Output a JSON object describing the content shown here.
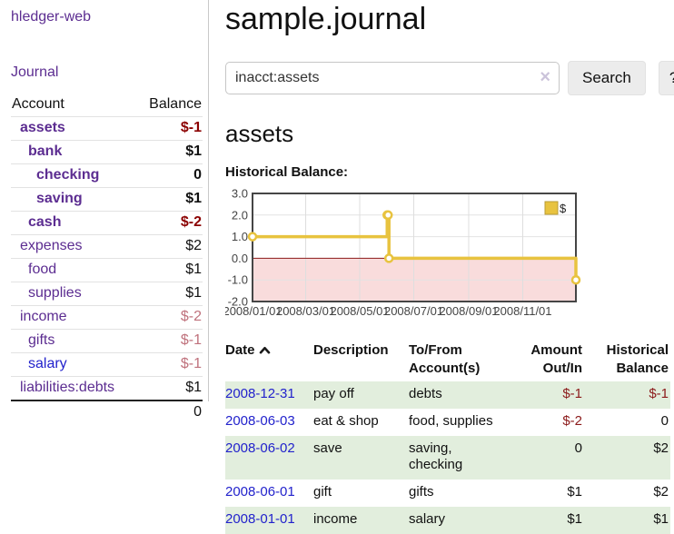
{
  "sidebar": {
    "app_title": "hledger-web",
    "nav": {
      "journal_label": "Journal"
    },
    "accounts_table": {
      "headers": {
        "account": "Account",
        "balance": "Balance"
      },
      "rows": [
        {
          "name": "assets",
          "level": 1,
          "bold": true,
          "blue": false,
          "balance": "$-1",
          "neg": "neg-strong"
        },
        {
          "name": "bank",
          "level": 2,
          "bold": true,
          "blue": false,
          "balance": "$1",
          "neg": ""
        },
        {
          "name": "checking",
          "level": 3,
          "bold": true,
          "blue": false,
          "balance": "0",
          "neg": ""
        },
        {
          "name": "saving",
          "level": 3,
          "bold": true,
          "blue": false,
          "balance": "$1",
          "neg": ""
        },
        {
          "name": "cash",
          "level": 2,
          "bold": true,
          "blue": false,
          "balance": "$-2",
          "neg": "neg-strong"
        },
        {
          "name": "expenses",
          "level": 1,
          "bold": false,
          "blue": false,
          "balance": "$2",
          "neg": ""
        },
        {
          "name": "food",
          "level": 2,
          "bold": false,
          "blue": false,
          "balance": "$1",
          "neg": ""
        },
        {
          "name": "supplies",
          "level": 2,
          "bold": false,
          "blue": false,
          "balance": "$1",
          "neg": ""
        },
        {
          "name": "income",
          "level": 1,
          "bold": false,
          "blue": false,
          "balance": "$-2",
          "neg": "neg-soft"
        },
        {
          "name": "gifts",
          "level": 2,
          "bold": false,
          "blue": false,
          "balance": "$-1",
          "neg": "neg-soft"
        },
        {
          "name": "salary",
          "level": 2,
          "bold": false,
          "blue": true,
          "balance": "$-1",
          "neg": "neg-soft"
        },
        {
          "name": "liabilities:debts",
          "level": 1,
          "bold": false,
          "blue": false,
          "balance": "$1",
          "neg": ""
        }
      ],
      "total": "0"
    }
  },
  "main": {
    "title": "sample.journal",
    "search": {
      "value": "inacct:assets",
      "clear_icon": "×",
      "button_label": "Search",
      "help_label": "?"
    },
    "account_heading": "assets",
    "chart_label": "Historical Balance:"
  },
  "chart_data": {
    "type": "line",
    "title": "Historical Balance",
    "step": true,
    "series": [
      {
        "name": "$",
        "color": "#e8c33f",
        "points": [
          [
            "2008-01-01",
            1
          ],
          [
            "2008-06-01",
            2
          ],
          [
            "2008-06-02",
            2
          ],
          [
            "2008-06-03",
            0
          ],
          [
            "2008-12-31",
            -1
          ]
        ]
      }
    ],
    "x_range": [
      "2008-01-01",
      "2008-12-31"
    ],
    "x_ticks": [
      "2008/01/01",
      "2008/03/01",
      "2008/05/01",
      "2008/07/01",
      "2008/09/01",
      "2008/11/01"
    ],
    "y_ticks": [
      3,
      2,
      1,
      0,
      -1,
      -2
    ],
    "ylim": [
      -2,
      3
    ],
    "grid": true,
    "negative_region_color": "#f9dcdc",
    "zero_line_color": "#8b1a1a",
    "legend": {
      "label": "$",
      "position": "top-right"
    }
  },
  "register": {
    "headers": {
      "date": "Date",
      "description": "Description",
      "tofrom": "To/From Account(s)",
      "amount": "Amount Out/In",
      "balance": "Historical Balance"
    },
    "rows": [
      {
        "date": "2008-12-31",
        "description": "pay off",
        "accounts": [
          "debts"
        ],
        "amount": "$-1",
        "amount_neg": true,
        "balance": "$-1",
        "balance_neg": true
      },
      {
        "date": "2008-06-03",
        "description": "eat & shop",
        "accounts": [
          "food, supplies"
        ],
        "amount": "$-2",
        "amount_neg": true,
        "balance": "0",
        "balance_neg": false
      },
      {
        "date": "2008-06-02",
        "description": "save",
        "accounts": [
          "saving,",
          "checking"
        ],
        "amount": "0",
        "amount_neg": false,
        "balance": "$2",
        "balance_neg": false
      },
      {
        "date": "2008-06-01",
        "description": "gift",
        "accounts": [
          "gifts"
        ],
        "amount": "$1",
        "amount_neg": false,
        "balance": "$2",
        "balance_neg": false
      },
      {
        "date": "2008-01-01",
        "description": "income",
        "accounts": [
          "salary"
        ],
        "amount": "$1",
        "amount_neg": false,
        "balance": "$1",
        "balance_neg": false
      }
    ]
  }
}
